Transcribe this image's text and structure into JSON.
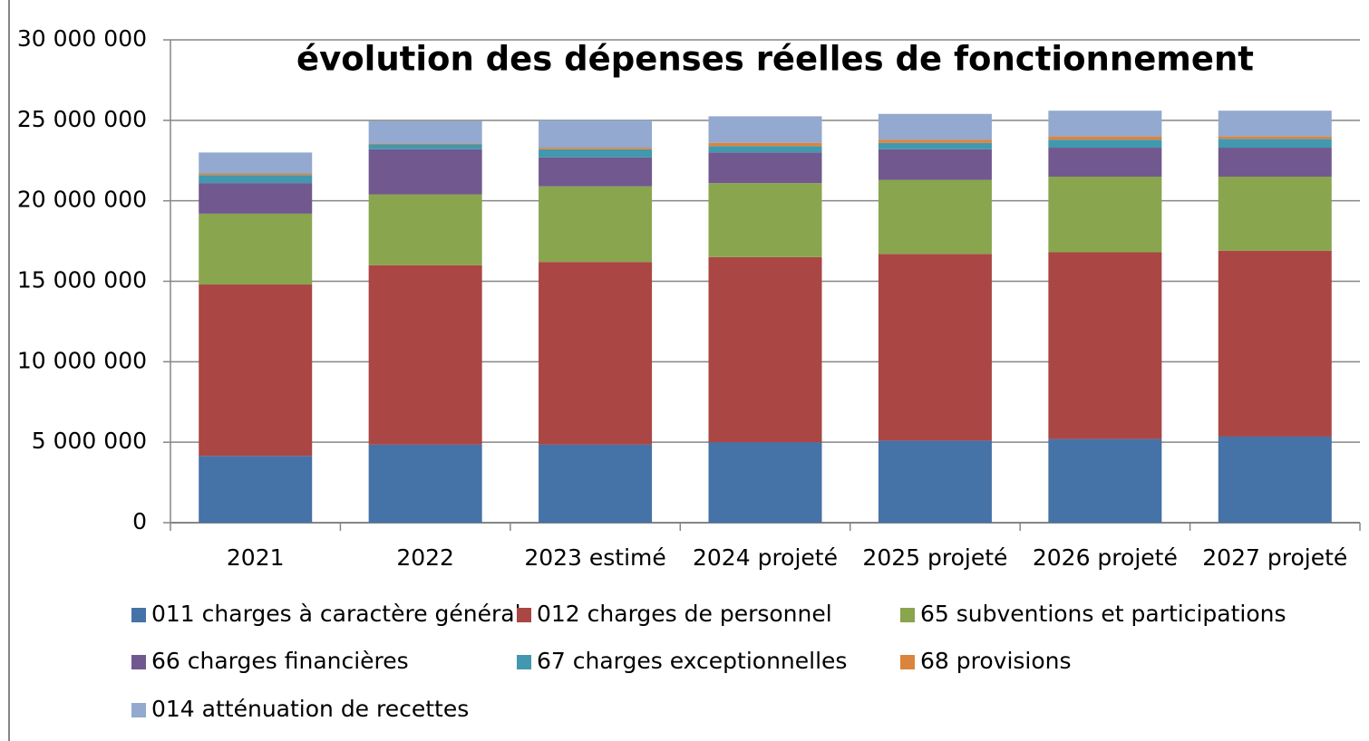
{
  "chart_data": {
    "type": "bar",
    "stacked": true,
    "title": "évolution des dépenses réelles de fonctionnement",
    "categories": [
      "2021",
      "2022",
      "2023 estimé",
      "2024 projeté",
      "2025 projeté",
      "2026 projeté",
      "2027 projeté"
    ],
    "series": [
      {
        "name": "011 charges à caractère général",
        "color": "#4572a7",
        "values": [
          4150000,
          4850000,
          4850000,
          5000000,
          5100000,
          5200000,
          5350000
        ]
      },
      {
        "name": "012 charges de personnel",
        "color": "#aa4643",
        "values": [
          10650000,
          11150000,
          11350000,
          11500000,
          11600000,
          11600000,
          11550000
        ]
      },
      {
        "name": "65 subventions et participations",
        "color": "#89a54e",
        "values": [
          4400000,
          4400000,
          4700000,
          4600000,
          4600000,
          4700000,
          4600000
        ]
      },
      {
        "name": "66 charges financières",
        "color": "#71588f",
        "values": [
          1900000,
          2800000,
          1800000,
          1900000,
          1900000,
          1800000,
          1800000
        ]
      },
      {
        "name": "67 charges exceptionnelles",
        "color": "#4198af",
        "values": [
          500000,
          300000,
          500000,
          400000,
          400000,
          500000,
          550000
        ]
      },
      {
        "name": "68 provisions",
        "color": "#db843d",
        "values": [
          100000,
          50000,
          100000,
          200000,
          200000,
          200000,
          150000
        ]
      },
      {
        "name": "014 atténuation de recettes",
        "color": "#93a9cf",
        "values": [
          1300000,
          1400000,
          1700000,
          1650000,
          1600000,
          1600000,
          1600000
        ]
      }
    ],
    "ylim": [
      0,
      30000000
    ],
    "yticks": [
      0,
      {
        "value": 5000000,
        "label": "5 000 000"
      },
      {
        "value": 10000000,
        "label": "10 000 000"
      },
      {
        "value": 15000000,
        "label": "15 000 000"
      },
      {
        "value": 20000000,
        "label": "20 000 000"
      },
      {
        "value": 25000000,
        "label": "25 000 000"
      },
      {
        "value": 30000000,
        "label": "30 000 000"
      }
    ],
    "grid": true,
    "legend": "bottom"
  }
}
